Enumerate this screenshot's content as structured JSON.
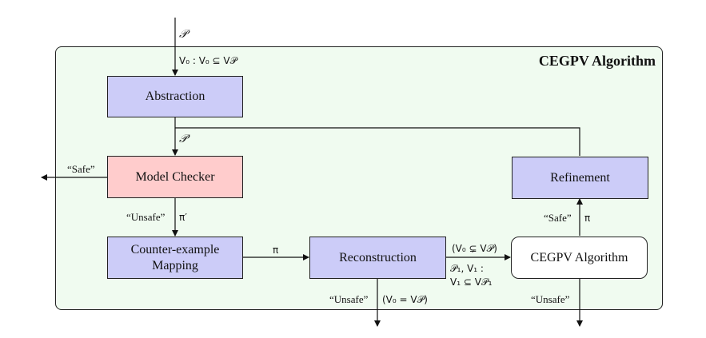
{
  "title": "CEGPV Algorithm",
  "nodes": {
    "abstraction": "Abstraction",
    "model_checker": "Model Checker",
    "counterexample_line1": "Counter-example",
    "counterexample_line2": "Mapping",
    "reconstruction": "Reconstruction",
    "refinement": "Refinement",
    "cegpv_inner": "CEGPV Algorithm"
  },
  "edges": {
    "input": "𝒫",
    "v0_label": "V₀ : V₀ ⊆ V𝒫",
    "p_prime": "𝒫′",
    "safe_out": "“Safe”",
    "unsafe_mc": "“Unsafe”",
    "pi_prime": "π′",
    "pi": "π",
    "cond_strict": "(V₀ ⊊ V𝒫)",
    "p1_v1": "𝒫₁, V₁ :",
    "v1_subset": "V₁ ⊆ V𝒫₁",
    "unsafe_recon": "“Unsafe”",
    "cond_equal": "(V₀ = V𝒫)",
    "safe_inner": "“Safe”",
    "pi_inner": "π",
    "unsafe_inner": "“Unsafe”"
  },
  "colors": {
    "container_bg": "#f0fbf0",
    "box_blue": "#ccccf8",
    "box_pink": "#ffcccc",
    "box_white": "#ffffff"
  }
}
